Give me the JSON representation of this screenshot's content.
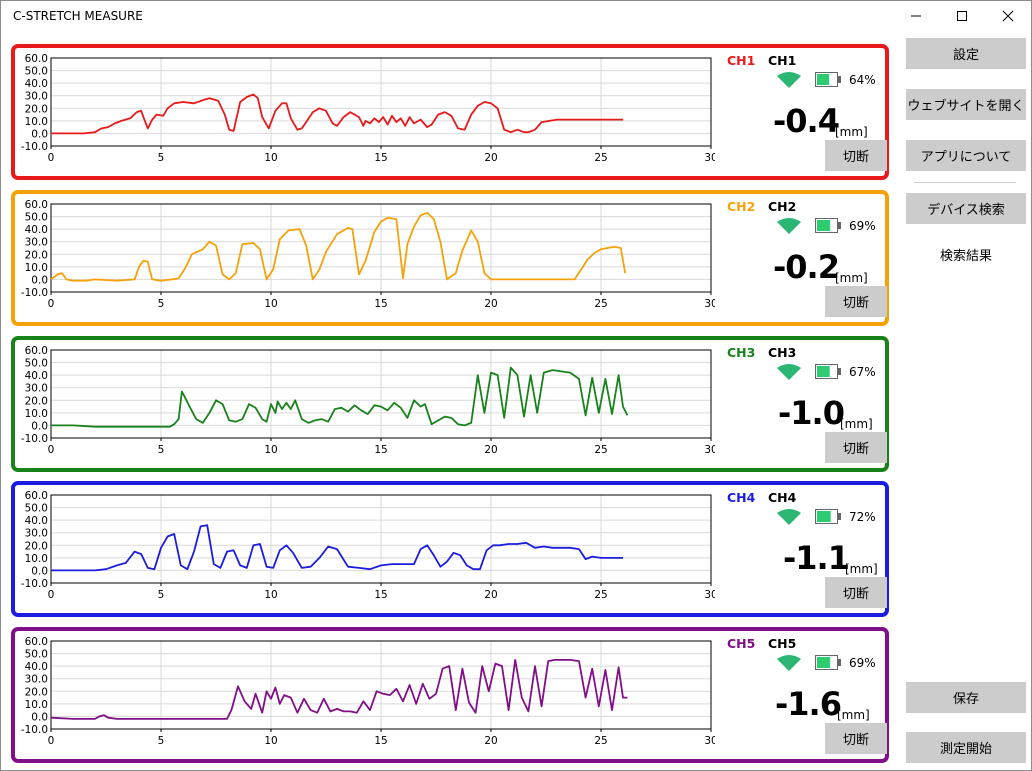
{
  "window": {
    "title": "C-STRETCH MEASURE",
    "controls": [
      "minimize-icon",
      "maximize-icon",
      "close-icon"
    ]
  },
  "sidebar": {
    "settings": "設定",
    "open_website": "ウェブサイトを開く",
    "about_app": "アプリについて",
    "device_search": "デバイス検索",
    "search_results": "検索結果",
    "save": "保存",
    "start_measure": "測定開始"
  },
  "channels": [
    {
      "label": "CH1",
      "color": "#e8191b",
      "battery": "64%",
      "value": "-0.4",
      "unit": "[mm]",
      "disconnect": "切断"
    },
    {
      "label": "CH2",
      "color": "#f5a20a",
      "battery": "69%",
      "value": "-0.2",
      "unit": "[mm]",
      "disconnect": "切断"
    },
    {
      "label": "CH3",
      "color": "#18821b",
      "battery": "67%",
      "value": "-1.0",
      "unit": "[mm]",
      "disconnect": "切断"
    },
    {
      "label": "CH4",
      "color": "#1c1ce0",
      "battery": "72%",
      "value": "-1.1",
      "unit": "[mm]",
      "disconnect": "切断"
    },
    {
      "label": "CH5",
      "color": "#800f88",
      "battery": "69%",
      "value": "-1.6",
      "unit": "[mm]",
      "disconnect": "切断"
    }
  ],
  "icon_colors": {
    "signal": "#2bb673",
    "battery": "#2ecc71"
  },
  "chart_data": [
    {
      "type": "line",
      "xlim": [
        0,
        30
      ],
      "ylim": [
        -10,
        60
      ],
      "x_ticks": [
        0,
        5,
        10,
        15,
        20,
        25,
        30
      ],
      "y_ticks": [
        "60.0",
        "50.0",
        "40.0",
        "30.0",
        "20.0",
        "10.0",
        "0.0",
        "-10.0"
      ],
      "series": [
        {
          "name": "CH1",
          "x": [
            0,
            1.5,
            2,
            2.3,
            2.6,
            2.9,
            3.2,
            3.6,
            3.9,
            4.1,
            4.2,
            4.4,
            4.6,
            4.8,
            5.1,
            5.3,
            5.6,
            6,
            6.5,
            7,
            7.2,
            7.6,
            7.9,
            8.1,
            8.3,
            8.6,
            8.9,
            9.2,
            9.4,
            9.6,
            9.9,
            10.2,
            10.5,
            10.7,
            10.9,
            11.2,
            11.4,
            11.6,
            11.9,
            12.2,
            12.5,
            12.8,
            13,
            13.3,
            13.6,
            14,
            14.2,
            14.3,
            14.5,
            14.7,
            14.9,
            15.1,
            15.3,
            15.5,
            15.7,
            15.9,
            16.1,
            16.3,
            16.5,
            16.8,
            17.1,
            17.3,
            17.6,
            17.9,
            18.2,
            18.5,
            18.8,
            19.1,
            19.4,
            19.7,
            20,
            20.3,
            20.6,
            20.9,
            21.2,
            21.5,
            21.7,
            22,
            22.3,
            23,
            24,
            25,
            26
          ],
          "y": [
            0,
            0,
            1,
            4,
            5,
            8,
            10,
            12,
            17,
            18,
            13,
            4,
            11,
            15,
            14,
            20,
            24,
            25,
            24,
            27,
            28,
            26,
            15,
            3,
            2,
            25,
            29,
            31,
            28,
            13,
            4,
            18,
            24,
            24,
            12,
            3,
            4,
            9,
            17,
            20,
            18,
            8,
            6,
            13,
            17,
            13,
            6,
            10,
            8,
            12,
            9,
            13,
            7,
            14,
            9,
            12,
            6,
            13,
            8,
            11,
            5,
            7,
            15,
            17,
            14,
            4,
            3,
            15,
            22,
            25,
            24,
            20,
            3,
            1,
            3,
            1,
            1,
            3,
            9,
            11,
            11,
            11,
            11
          ]
        }
      ]
    },
    {
      "type": "line",
      "xlim": [
        0,
        30
      ],
      "ylim": [
        -10,
        60
      ],
      "x_ticks": [
        0,
        5,
        10,
        15,
        20,
        25,
        30
      ],
      "y_ticks": [
        "60.0",
        "50.0",
        "40.0",
        "30.0",
        "20.0",
        "10.0",
        "0.0",
        "-10.0"
      ],
      "series": [
        {
          "name": "CH2",
          "x": [
            0,
            0.3,
            0.5,
            0.7,
            1,
            1.2,
            1.6,
            2,
            3,
            3.8,
            4,
            4.2,
            4.4,
            4.6,
            5,
            5.5,
            5.8,
            6.1,
            6.4,
            6.9,
            7.2,
            7.5,
            7.8,
            8.1,
            8.4,
            8.7,
            9.2,
            9.5,
            9.8,
            10.1,
            10.4,
            10.8,
            11.3,
            11.6,
            11.9,
            12.2,
            12.5,
            13,
            13.5,
            13.7,
            14,
            14.3,
            14.7,
            15,
            15.3,
            15.7,
            16,
            16.2,
            16.5,
            16.8,
            17.1,
            17.4,
            17.7,
            18,
            18.4,
            18.7,
            19.1,
            19.4,
            19.7,
            20,
            20.5,
            21,
            21.5,
            22,
            22.5,
            23,
            23.5,
            23.8,
            24.1,
            24.4,
            24.7,
            25,
            25.3,
            25.6,
            25.9,
            26.1
          ],
          "y": [
            0,
            4,
            5,
            0,
            -1,
            -1,
            -1,
            0,
            -1,
            0,
            10,
            15,
            14,
            0,
            -1,
            0,
            1,
            9,
            20,
            24,
            30,
            27,
            4,
            0,
            5,
            28,
            29,
            24,
            0,
            8,
            32,
            39,
            40,
            27,
            0,
            8,
            22,
            36,
            41,
            40,
            4,
            15,
            38,
            46,
            49,
            48,
            1,
            28,
            42,
            51,
            53,
            48,
            30,
            0,
            5,
            23,
            39,
            30,
            5,
            0,
            0,
            0,
            0,
            0,
            0,
            0,
            0,
            0,
            8,
            16,
            21,
            24,
            25,
            26,
            25,
            5
          ],
          "_": ""
        }
      ]
    },
    {
      "type": "line",
      "xlim": [
        0,
        30
      ],
      "ylim": [
        -10,
        60
      ],
      "x_ticks": [
        0,
        5,
        10,
        15,
        20,
        25,
        30
      ],
      "y_ticks": [
        "60.0",
        "50.0",
        "40.0",
        "30.0",
        "20.0",
        "10.0",
        "0.0",
        "-10.0"
      ],
      "series": [
        {
          "name": "CH3",
          "x": [
            0,
            1,
            2,
            3,
            4,
            5,
            5.2,
            5.4,
            5.6,
            5.8,
            5.95,
            6.1,
            6.3,
            6.6,
            6.9,
            7.2,
            7.5,
            7.8,
            8.1,
            8.4,
            8.7,
            9,
            9.3,
            9.6,
            9.8,
            10,
            10.2,
            10.3,
            10.5,
            10.7,
            10.9,
            11.1,
            11.4,
            11.7,
            12,
            12.3,
            12.6,
            12.9,
            13.2,
            13.5,
            13.8,
            14.1,
            14.4,
            14.7,
            15,
            15.3,
            15.6,
            15.9,
            16.2,
            16.5,
            16.8,
            17,
            17.3,
            17.6,
            17.9,
            18.2,
            18.5,
            18.8,
            19.1,
            19.4,
            19.7,
            20,
            20.3,
            20.6,
            20.9,
            21.2,
            21.5,
            21.8,
            22.1,
            22.4,
            22.8,
            23.2,
            23.6,
            24,
            24.3,
            24.6,
            24.9,
            25.2,
            25.5,
            25.8,
            26,
            26.2
          ],
          "y": [
            0,
            0,
            -1,
            -1,
            -1,
            -1,
            -1,
            -1,
            1,
            5,
            27,
            22,
            15,
            5,
            2,
            10,
            20,
            17,
            4,
            3,
            5,
            17,
            14,
            5,
            3,
            17,
            10,
            19,
            13,
            18,
            13,
            20,
            5,
            2,
            4,
            5,
            3,
            13,
            14,
            11,
            16,
            12,
            9,
            16,
            15,
            12,
            18,
            14,
            6,
            20,
            15,
            17,
            1,
            4,
            7,
            6,
            1,
            0,
            2,
            40,
            10,
            42,
            40,
            6,
            46,
            40,
            7,
            40,
            10,
            42,
            44,
            43,
            42,
            37,
            8,
            38,
            10,
            37,
            9,
            40,
            15,
            8
          ]
        }
      ]
    },
    {
      "type": "line",
      "xlim": [
        0,
        30
      ],
      "ylim": [
        -10,
        60
      ],
      "x_ticks": [
        0,
        5,
        10,
        15,
        20,
        25,
        30
      ],
      "y_ticks": [
        "60.0",
        "50.0",
        "40.0",
        "30.0",
        "20.0",
        "10.0",
        "0.0",
        "-10.0"
      ],
      "series": [
        {
          "name": "CH4",
          "x": [
            0,
            1,
            2,
            2.5,
            3,
            3.4,
            3.8,
            4.1,
            4.4,
            4.7,
            5,
            5.3,
            5.6,
            5.9,
            6.2,
            6.5,
            6.8,
            7.1,
            7.4,
            7.7,
            8,
            8.3,
            8.6,
            8.9,
            9.2,
            9.5,
            9.8,
            10.1,
            10.4,
            10.7,
            11,
            11.4,
            11.8,
            12.2,
            12.6,
            13,
            13.5,
            14,
            14.5,
            15,
            15.5,
            16,
            16.5,
            16.8,
            17.1,
            17.4,
            17.7,
            18,
            18.3,
            18.6,
            18.9,
            19.2,
            19.5,
            19.8,
            20.1,
            20.4,
            20.8,
            21.2,
            21.6,
            22,
            22.4,
            22.8,
            23.2,
            23.6,
            24,
            24.3,
            24.6,
            25,
            26
          ],
          "y": [
            0,
            0,
            0,
            1,
            4,
            6,
            15,
            13,
            2,
            1,
            18,
            27,
            29,
            4,
            1,
            15,
            35,
            36,
            5,
            2,
            15,
            16,
            4,
            2,
            20,
            21,
            3,
            2,
            16,
            20,
            14,
            2,
            3,
            10,
            19,
            17,
            3,
            2,
            1,
            4,
            5,
            5,
            5,
            17,
            20,
            12,
            3,
            7,
            14,
            12,
            4,
            1,
            1,
            16,
            20,
            20,
            21,
            21,
            22,
            18,
            19,
            18,
            18,
            18,
            17,
            9,
            11,
            10,
            10
          ]
        }
      ]
    },
    {
      "type": "line",
      "xlim": [
        0,
        30
      ],
      "ylim": [
        -10,
        60
      ],
      "x_ticks": [
        0,
        5,
        10,
        15,
        20,
        25,
        30
      ],
      "y_ticks": [
        "60.0",
        "50.0",
        "40.0",
        "30.0",
        "20.0",
        "10.0",
        "0.0",
        "-10.0"
      ],
      "series": [
        {
          "name": "CH5",
          "x": [
            0,
            1,
            2,
            2.2,
            2.4,
            2.6,
            3,
            4,
            5,
            6,
            7,
            7.5,
            8,
            8.2,
            8.5,
            8.8,
            9.1,
            9.3,
            9.6,
            9.8,
            10,
            10.2,
            10.4,
            10.6,
            10.9,
            11.2,
            11.5,
            11.8,
            12.1,
            12.4,
            12.7,
            13,
            13.3,
            13.6,
            13.9,
            14.2,
            14.5,
            14.8,
            15.1,
            15.4,
            15.7,
            16,
            16.3,
            16.6,
            16.9,
            17.2,
            17.5,
            17.8,
            18.1,
            18.4,
            18.7,
            19,
            19.3,
            19.6,
            19.9,
            20.2,
            20.5,
            20.8,
            21.1,
            21.4,
            21.7,
            22,
            22.3,
            22.6,
            22.9,
            23.3,
            23.6,
            24,
            24.3,
            24.6,
            24.9,
            25.2,
            25.5,
            25.8,
            26,
            26.2
          ],
          "y": [
            -1,
            -2,
            -2,
            0,
            1,
            -1,
            -2,
            -2,
            -2,
            -2,
            -2,
            -2,
            -2,
            5,
            24,
            12,
            6,
            18,
            3,
            20,
            14,
            23,
            10,
            17,
            15,
            3,
            14,
            5,
            3,
            14,
            4,
            6,
            4,
            4,
            3,
            12,
            5,
            20,
            18,
            17,
            22,
            12,
            25,
            10,
            26,
            14,
            18,
            38,
            40,
            5,
            38,
            11,
            3,
            40,
            20,
            42,
            40,
            5,
            45,
            15,
            4,
            40,
            8,
            44,
            45,
            45,
            45,
            44,
            15,
            38,
            8,
            37,
            5,
            39,
            15,
            15
          ]
        }
      ]
    }
  ]
}
